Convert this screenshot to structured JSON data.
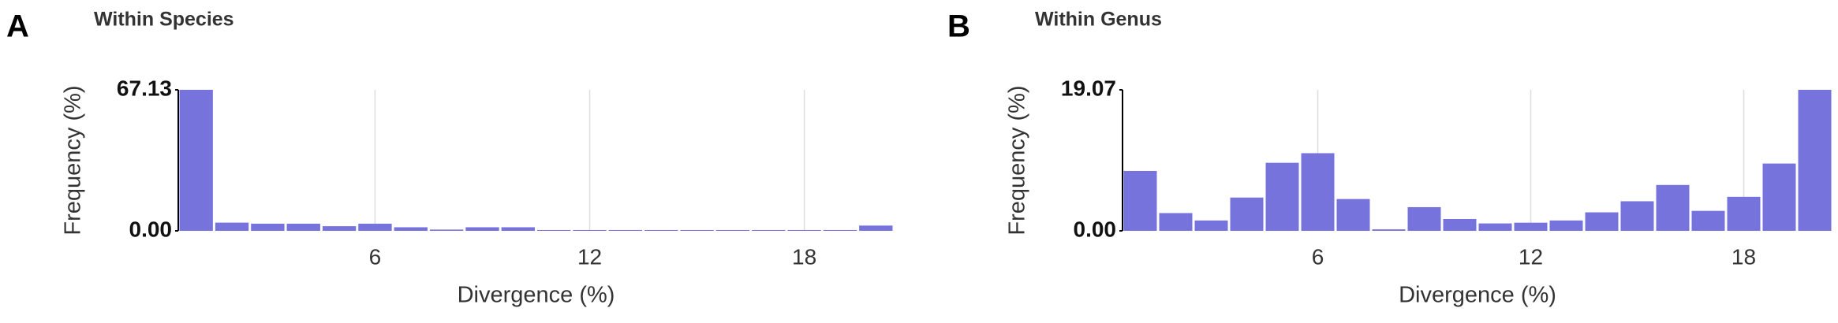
{
  "chart_data": [
    {
      "type": "histogram",
      "panel": "A",
      "title": "Within Species",
      "xlabel": "Divergence (%)",
      "ylabel": "Frequency (%)",
      "bins": [
        0.5,
        1.5,
        2.5,
        3.5,
        4.5,
        5.5,
        6.5,
        7.5,
        8.5,
        9.5,
        10.5,
        11.5,
        12.5,
        13.5,
        14.5,
        15.5,
        16.5,
        17.5,
        18.5,
        19.5,
        20.5
      ],
      "values": [
        67.13,
        3.9,
        3.4,
        3.4,
        2.2,
        3.4,
        1.7,
        0.6,
        1.7,
        1.7,
        0.4,
        0.4,
        0.4,
        0.4,
        0.4,
        0.4,
        0.4,
        0.4,
        0.4,
        2.5
      ],
      "color": "#7773dd",
      "xlim": [
        0.5,
        20.5
      ],
      "ylim": [
        0,
        67.13
      ],
      "xticks": [
        6,
        12,
        18
      ],
      "yticks": [
        {
          "value": 0,
          "label": "0.00"
        },
        67.13
      ],
      "grid": "x"
    },
    {
      "type": "histogram",
      "panel": "B",
      "title": "Within Genus",
      "xlabel": "Divergence (%)",
      "ylabel": "Frequency (%)",
      "bins": [
        0.5,
        1.5,
        2.5,
        3.5,
        4.5,
        5.5,
        6.5,
        7.5,
        8.5,
        9.5,
        10.5,
        11.5,
        12.5,
        13.5,
        14.5,
        15.5,
        16.5,
        17.5,
        18.5,
        19.5,
        20.5
      ],
      "values": [
        8.1,
        2.4,
        1.4,
        4.5,
        9.2,
        10.5,
        4.3,
        0.2,
        3.2,
        1.6,
        1.0,
        1.1,
        1.4,
        2.5,
        4.0,
        6.2,
        2.7,
        4.6,
        9.1,
        19.07
      ],
      "color": "#7773dd",
      "xlim": [
        0.5,
        20.5
      ],
      "ylim": [
        0,
        19.07
      ],
      "xticks": [
        6,
        12,
        18
      ],
      "yticks": [
        {
          "value": 0,
          "label": "0.00"
        },
        19.07
      ],
      "grid": "x"
    }
  ]
}
